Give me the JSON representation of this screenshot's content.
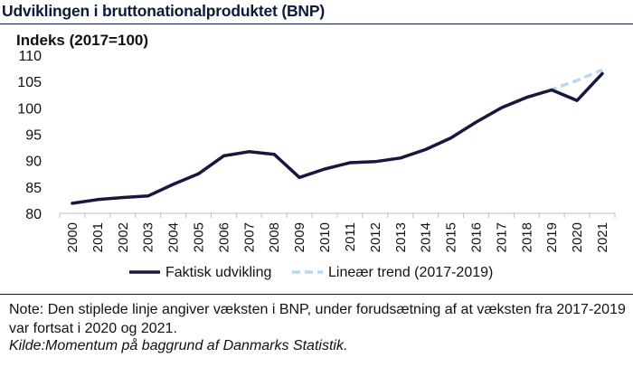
{
  "header": {
    "title": "Udviklingen i bruttonationalproduktet (BNP)"
  },
  "footer": {
    "note": "Note: Den stiplede linje angiver væksten i BNP, under forudsætning af at væksten fra 2017-2019 var fortsat i 2020 og 2021.",
    "source": "Kilde:Momentum på baggrund af Danmarks Statistik."
  },
  "colors": {
    "actual": "#15193d",
    "trend": "#b9d9ef",
    "text": "#111111",
    "title": "#0e1a3d"
  },
  "chart_data": {
    "type": "line",
    "title": "Udviklingen i bruttonationalproduktet (BNP)",
    "ylabel": "Indeks (2017=100)",
    "xlabel": "",
    "ylim": [
      80,
      110
    ],
    "yticks": [
      "80",
      "85",
      "90",
      "95",
      "100",
      "105",
      "110"
    ],
    "grid": false,
    "legend_position": "bottom",
    "categories": [
      "2000",
      "2001",
      "2002",
      "2003",
      "2004",
      "2005",
      "2006",
      "2007",
      "2008",
      "2009",
      "2010",
      "2011",
      "2012",
      "2013",
      "2014",
      "2015",
      "2016",
      "2017",
      "2018",
      "2019",
      "2020",
      "2021"
    ],
    "series": [
      {
        "name": "Faktisk udvikling",
        "style": "solid",
        "x": [
          "2000",
          "2001",
          "2002",
          "2003",
          "2004",
          "2005",
          "2006",
          "2007",
          "2008",
          "2009",
          "2010",
          "2011",
          "2012",
          "2013",
          "2014",
          "2015",
          "2016",
          "2017",
          "2018",
          "2019",
          "2020",
          "2021"
        ],
        "values": [
          81.9,
          82.6,
          83.0,
          83.3,
          85.5,
          87.5,
          90.9,
          91.7,
          91.2,
          86.8,
          88.4,
          89.6,
          89.8,
          90.5,
          92.1,
          94.3,
          97.3,
          100.0,
          102.0,
          103.4,
          101.4,
          106.5
        ]
      },
      {
        "name": "Lineær trend (2017-2019)",
        "style": "dashed",
        "x": [
          "2017",
          "2018",
          "2019",
          "2020",
          "2021"
        ],
        "values": [
          100.0,
          101.9,
          103.5,
          105.2,
          107.2
        ]
      }
    ]
  }
}
